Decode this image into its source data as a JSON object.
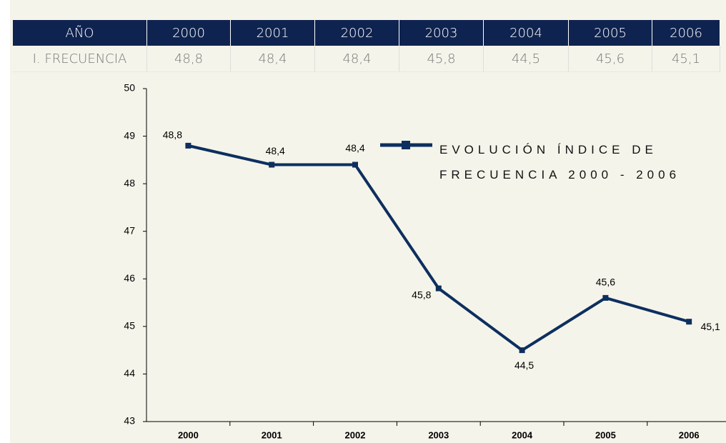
{
  "table": {
    "header": [
      "AÑO",
      "2000",
      "2001",
      "2002",
      "2003",
      "2004",
      "2005",
      "2006"
    ],
    "rows": [
      [
        "I. FRECUENCIA",
        "48,8",
        "48,4",
        "48,4",
        "45,8",
        "44,5",
        "45,6",
        "45,1"
      ]
    ]
  },
  "chart_data": {
    "type": "line",
    "categories": [
      "2000",
      "2001",
      "2002",
      "2003",
      "2004",
      "2005",
      "2006"
    ],
    "series": [
      {
        "name": "EVOLUCIÓN ÍNDICE DE FRECUENCIA 2000 - 2006",
        "color": "#0d2f5f",
        "values": [
          48.8,
          48.4,
          48.4,
          45.8,
          44.5,
          45.6,
          45.1
        ],
        "value_labels": [
          "48,8",
          "48,4",
          "48,4",
          "45,8",
          "44,5",
          "45,6",
          "45,1"
        ]
      }
    ],
    "ylim": [
      43,
      50
    ],
    "yticks": [
      43,
      44,
      45,
      46,
      47,
      48,
      49,
      50
    ],
    "grid": false
  }
}
